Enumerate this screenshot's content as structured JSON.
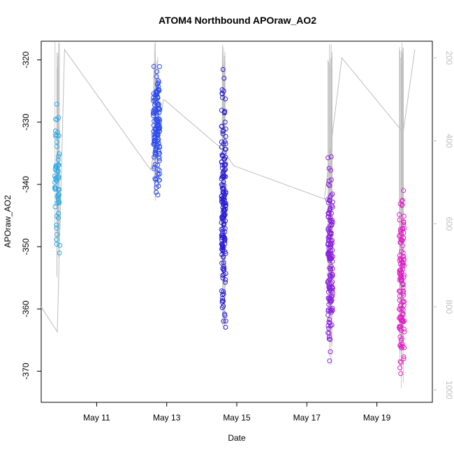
{
  "chart_data": {
    "type": "scatter",
    "title": "ATOM4 Northbound APOraw_AO2",
    "xlabel": "Date",
    "ylabel": "APOraw_AO2",
    "xlim": [
      "2023-05-09T10:00",
      "2023-05-20T14:00"
    ],
    "ylim": [
      -375,
      -317
    ],
    "x_ticks": [
      "May 11",
      "May 13",
      "May 15",
      "May 17",
      "May 19"
    ],
    "y_ticks": [
      -320,
      -330,
      -340,
      -350,
      -360,
      -370
    ],
    "y2_lim": [
      1030,
      160
    ],
    "y2_ticks": [
      200,
      400,
      600,
      800,
      1000
    ],
    "grid": false,
    "legend": "none",
    "colors": {
      "seg1": "#2aa8e8",
      "seg2": "#2b4cf0",
      "seg3": "#2a1fd8",
      "seg4": "#8a1fe0",
      "seg5": "#e21fc8",
      "line": "#bdbdbd"
    },
    "clusters": [
      {
        "name": "",
        "center": "2023-05-09T21:00",
        "spread_hours": 3.5,
        "ymin": -355,
        "ymax": -324,
        "n": 60
      },
      {
        "name": "",
        "center": "2023-05-12T17:00",
        "spread_hours": 4.5,
        "ymin": -343,
        "ymax": -319,
        "n": 140
      },
      {
        "name": "",
        "center": "2023-05-14T15:00",
        "spread_hours": 3.0,
        "ymin": -365,
        "ymax": -321,
        "n": 180
      },
      {
        "name": "",
        "center": "2023-05-17T16:00",
        "spread_hours": 3.5,
        "ymin": -369,
        "ymax": -335,
        "n": 150
      },
      {
        "name": "",
        "center": "2023-05-19T17:00",
        "spread_hours": 3.5,
        "ymin": -373,
        "ymax": -338,
        "n": 130
      }
    ],
    "secondary_line": {
      "name": "",
      "points": [
        [
          "2023-05-09T10:00",
          800
        ],
        [
          "2023-05-09T21:00",
          860
        ],
        [
          "2023-05-10T02:00",
          180
        ],
        [
          "2023-05-12T13:00",
          470
        ],
        [
          "2023-05-12T22:00",
          300
        ],
        [
          "2023-05-14T14:00",
          420
        ],
        [
          "2023-05-14T22:00",
          460
        ],
        [
          "2023-05-17T12:00",
          540
        ],
        [
          "2023-05-18T00:00",
          200
        ],
        [
          "2023-05-19T18:00",
          380
        ],
        [
          "2023-05-20T02:00",
          180
        ]
      ]
    }
  }
}
